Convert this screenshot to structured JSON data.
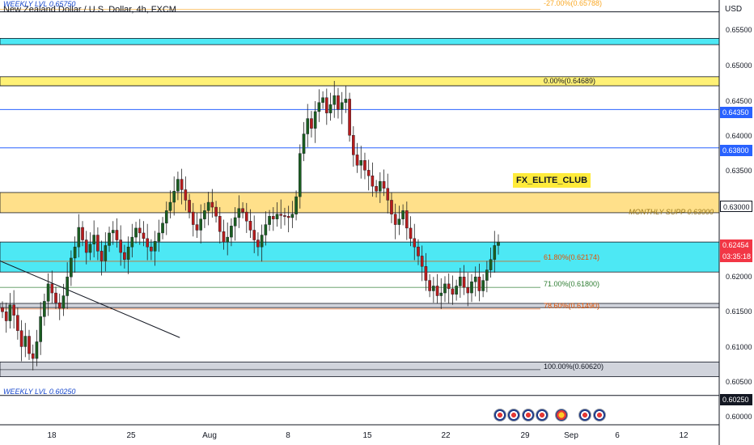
{
  "header": {
    "symbol_title": "New Zealand Dollar / U.S. Dollar, 4h, FXCM",
    "currency": "USD"
  },
  "annotations": {
    "weekly_top": "WEEKLY LVL 0.65750",
    "weekly_bottom": "WEEKLY LVL 0.60250",
    "club": "FX_ELITE_CLUB",
    "monthly": "MONTHLY SUPP 0.63000"
  },
  "fib_levels": [
    {
      "label": "-27.00%(0.65788)",
      "price": 0.65788,
      "color": "#f9a825"
    },
    {
      "label": "0.00%(0.64689)",
      "price": 0.64689,
      "color": "#131722"
    },
    {
      "label": "61.80%(0.62174)",
      "price": 0.62174,
      "color": "#e65100"
    },
    {
      "label": "71.00%(0.61800)",
      "price": 0.618,
      "color": "#2e7d32"
    },
    {
      "label": "78.60%(0.61490)",
      "price": 0.6149,
      "color": "#e65100"
    },
    {
      "label": "100.00%(0.60620)",
      "price": 0.6062,
      "color": "#131722"
    }
  ],
  "price_axis": {
    "ticks": [
      "0.65500",
      "0.65000",
      "0.64500",
      "0.64000",
      "0.63500",
      "0.62000",
      "0.61500",
      "0.61000",
      "0.60500",
      "0.60000"
    ],
    "tick_values": [
      0.655,
      0.65,
      0.645,
      0.64,
      0.635,
      0.62,
      0.615,
      0.61,
      0.605,
      0.6
    ],
    "highlighted": [
      {
        "label": "0.64350",
        "price": 0.6435,
        "bg": "#2962ff"
      },
      {
        "label": "0.63800",
        "price": 0.638,
        "bg": "#2962ff"
      },
      {
        "label": "0.63000",
        "price": 0.63,
        "bg": "#ffffff",
        "fg": "#131722"
      },
      {
        "label": "0.60250",
        "price": 0.6025,
        "bg": "#131722"
      }
    ],
    "current": {
      "label": "0.62454",
      "countdown": "03:35:18",
      "price": 0.62454,
      "bg": "#f23645"
    }
  },
  "time_axis": {
    "labels": [
      "18",
      "25",
      "Aug",
      "8",
      "15",
      "22",
      "29",
      "Sep",
      "6",
      "12"
    ]
  },
  "chart_data": {
    "type": "candlestick",
    "title": "New Zealand Dollar / U.S. Dollar, 4h, FXCM",
    "ylim": [
      0.5983,
      0.6592
    ],
    "y_ticks": [
      0.655,
      0.65,
      0.645,
      0.64,
      0.635,
      0.63,
      0.625,
      0.62,
      0.615,
      0.61,
      0.605,
      0.6
    ],
    "horizontal_levels": [
      {
        "price": 0.6575,
        "color": "#131722"
      },
      {
        "price": 0.6435,
        "color": "#2962ff"
      },
      {
        "price": 0.638,
        "color": "#2962ff"
      },
      {
        "price": 0.6025,
        "color": "#131722"
      }
    ],
    "zones": [
      {
        "from": 0.6528,
        "to": 0.6537,
        "color": "#4de8f4"
      },
      {
        "from": 0.6469,
        "to": 0.6482,
        "color": "#fff176"
      },
      {
        "from": 0.6287,
        "to": 0.6316,
        "color": "#ffe08a"
      },
      {
        "from": 0.6202,
        "to": 0.6245,
        "color": "#4de8f4"
      },
      {
        "from": 0.6151,
        "to": 0.6157,
        "color": "#d1d4dc"
      },
      {
        "from": 0.6052,
        "to": 0.6073,
        "color": "#d1d4dc"
      }
    ],
    "trendline": {
      "from": [
        0.0,
        0.6218
      ],
      "to": [
        0.25,
        0.6108
      ]
    },
    "series": [
      {
        "name": "NZDUSD",
        "closes": [
          0.6145,
          0.6132,
          0.6155,
          0.614,
          0.6118,
          0.6095,
          0.611,
          0.6085,
          0.6078,
          0.6102,
          0.6138,
          0.616,
          0.6185,
          0.6172,
          0.6158,
          0.615,
          0.6168,
          0.6195,
          0.6222,
          0.6238,
          0.6266,
          0.6248,
          0.623,
          0.6242,
          0.6255,
          0.6232,
          0.6218,
          0.624,
          0.6258,
          0.6262,
          0.6248,
          0.623,
          0.622,
          0.6238,
          0.6252,
          0.6265,
          0.6258,
          0.625,
          0.6238,
          0.6232,
          0.6246,
          0.6258,
          0.6272,
          0.629,
          0.6302,
          0.6318,
          0.6335,
          0.632,
          0.6305,
          0.6288,
          0.627,
          0.6262,
          0.6278,
          0.629,
          0.6302,
          0.6295,
          0.6282,
          0.626,
          0.6245,
          0.6252,
          0.6268,
          0.628,
          0.6293,
          0.6288,
          0.6275,
          0.6262,
          0.6248,
          0.6238,
          0.6255,
          0.627,
          0.6282,
          0.6278,
          0.6285,
          0.6283,
          0.6282,
          0.628,
          0.6285,
          0.631,
          0.6372,
          0.64,
          0.6422,
          0.6408,
          0.6432,
          0.6445,
          0.6452,
          0.643,
          0.6442,
          0.6455,
          0.6435,
          0.6445,
          0.645,
          0.6398,
          0.637,
          0.6355,
          0.6362,
          0.6348,
          0.634,
          0.6325,
          0.6318,
          0.6332,
          0.6322,
          0.6305,
          0.6285,
          0.627,
          0.6278,
          0.629,
          0.6265,
          0.625,
          0.6238,
          0.6225,
          0.621,
          0.619,
          0.6175,
          0.6182,
          0.6168,
          0.6172,
          0.6185,
          0.6178,
          0.617,
          0.6182,
          0.6195,
          0.618,
          0.6172,
          0.6188,
          0.6195,
          0.6175,
          0.619,
          0.6205,
          0.622,
          0.624,
          0.6245
        ]
      }
    ]
  }
}
